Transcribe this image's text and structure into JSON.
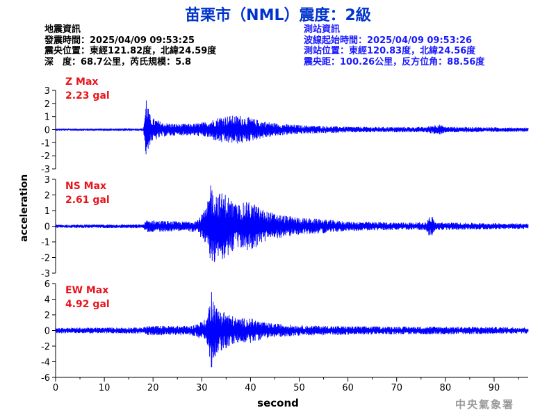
{
  "title": "苗栗市（NML）震度：2級",
  "quake_info": {
    "heading": "地震資訊",
    "origin_time": "發震時間：2025/04/09 09:53:25",
    "epicenter": "震央位置：東經121.82度，北緯24.59度",
    "depth_magnitude": "深　度：68.7公里，芮氏規模：5.8"
  },
  "station_info": {
    "heading": "測站資訊",
    "wave_start": "波線起始時間：2025/04/09 09:53:26",
    "station_location": "測站位置：東經120.83度，北緯24.56度",
    "distance_azimuth": "震央距：100.26公里，反方位角：88.56度"
  },
  "agency": "中央氣象署",
  "colors": {
    "trace": "#0000ff",
    "title": "#0033cc",
    "label": "#e8141c",
    "axis": "#000000"
  },
  "chart_data": [
    {
      "type": "line",
      "component": "Z",
      "max_label": "Z Max",
      "max_value": "2.23 gal",
      "peak": 2.23,
      "ylim": [
        -3,
        3
      ],
      "yticks": [
        3,
        2,
        1,
        0,
        -1,
        -2,
        -3
      ],
      "ylabel": "acceleration",
      "xlim": [
        0,
        97
      ],
      "envelope_points": [
        [
          0,
          0.08
        ],
        [
          18,
          0.1
        ],
        [
          18.6,
          2.23
        ],
        [
          19.5,
          1.0
        ],
        [
          22,
          0.55
        ],
        [
          25,
          0.45
        ],
        [
          28,
          0.45
        ],
        [
          31,
          0.6
        ],
        [
          34,
          1.05
        ],
        [
          38,
          1.1
        ],
        [
          42,
          0.7
        ],
        [
          46,
          0.45
        ],
        [
          50,
          0.35
        ],
        [
          60,
          0.22
        ],
        [
          70,
          0.2
        ],
        [
          76,
          0.2
        ],
        [
          78.5,
          0.45
        ],
        [
          80,
          0.22
        ],
        [
          90,
          0.18
        ],
        [
          97,
          0.15
        ]
      ]
    },
    {
      "type": "line",
      "component": "NS",
      "max_label": "NS Max",
      "max_value": "2.61 gal",
      "peak": 2.61,
      "ylim": [
        -3,
        3
      ],
      "yticks": [
        3,
        2,
        1,
        0,
        -1,
        -2,
        -3
      ],
      "ylabel": "acceleration",
      "xlim": [
        0,
        97
      ],
      "envelope_points": [
        [
          0,
          0.1
        ],
        [
          18,
          0.12
        ],
        [
          18.6,
          0.4
        ],
        [
          22,
          0.35
        ],
        [
          26,
          0.3
        ],
        [
          29,
          0.4
        ],
        [
          31,
          1.2
        ],
        [
          31.8,
          2.61
        ],
        [
          33,
          2.2
        ],
        [
          35,
          2.1
        ],
        [
          37,
          1.4
        ],
        [
          40,
          1.6
        ],
        [
          43,
          1.0
        ],
        [
          46,
          0.75
        ],
        [
          50,
          0.55
        ],
        [
          55,
          0.45
        ],
        [
          60,
          0.3
        ],
        [
          70,
          0.25
        ],
        [
          76,
          0.25
        ],
        [
          77,
          0.8
        ],
        [
          78,
          0.25
        ],
        [
          90,
          0.2
        ],
        [
          97,
          0.18
        ]
      ]
    },
    {
      "type": "line",
      "component": "EW",
      "max_label": "EW Max",
      "max_value": "4.92 gal",
      "peak": 4.92,
      "ylim": [
        -6,
        6
      ],
      "yticks": [
        6,
        4,
        2,
        0,
        -2,
        -4,
        -6
      ],
      "ylabel": "acceleration",
      "xlim": [
        0,
        97
      ],
      "envelope_points": [
        [
          0,
          0.35
        ],
        [
          18,
          0.4
        ],
        [
          18.6,
          0.6
        ],
        [
          22,
          0.6
        ],
        [
          28,
          0.6
        ],
        [
          31,
          1.5
        ],
        [
          32,
          4.92
        ],
        [
          33,
          3.0
        ],
        [
          35,
          2.4
        ],
        [
          37,
          1.6
        ],
        [
          40,
          1.6
        ],
        [
          43,
          1.0
        ],
        [
          47,
          0.8
        ],
        [
          50,
          0.65
        ],
        [
          60,
          0.55
        ],
        [
          70,
          0.5
        ],
        [
          80,
          0.5
        ],
        [
          90,
          0.45
        ],
        [
          97,
          0.4
        ]
      ]
    }
  ],
  "x_axis": {
    "label": "second",
    "xlim": [
      0,
      97
    ],
    "ticks": [
      0,
      10,
      20,
      30,
      40,
      50,
      60,
      70,
      80,
      90
    ]
  }
}
